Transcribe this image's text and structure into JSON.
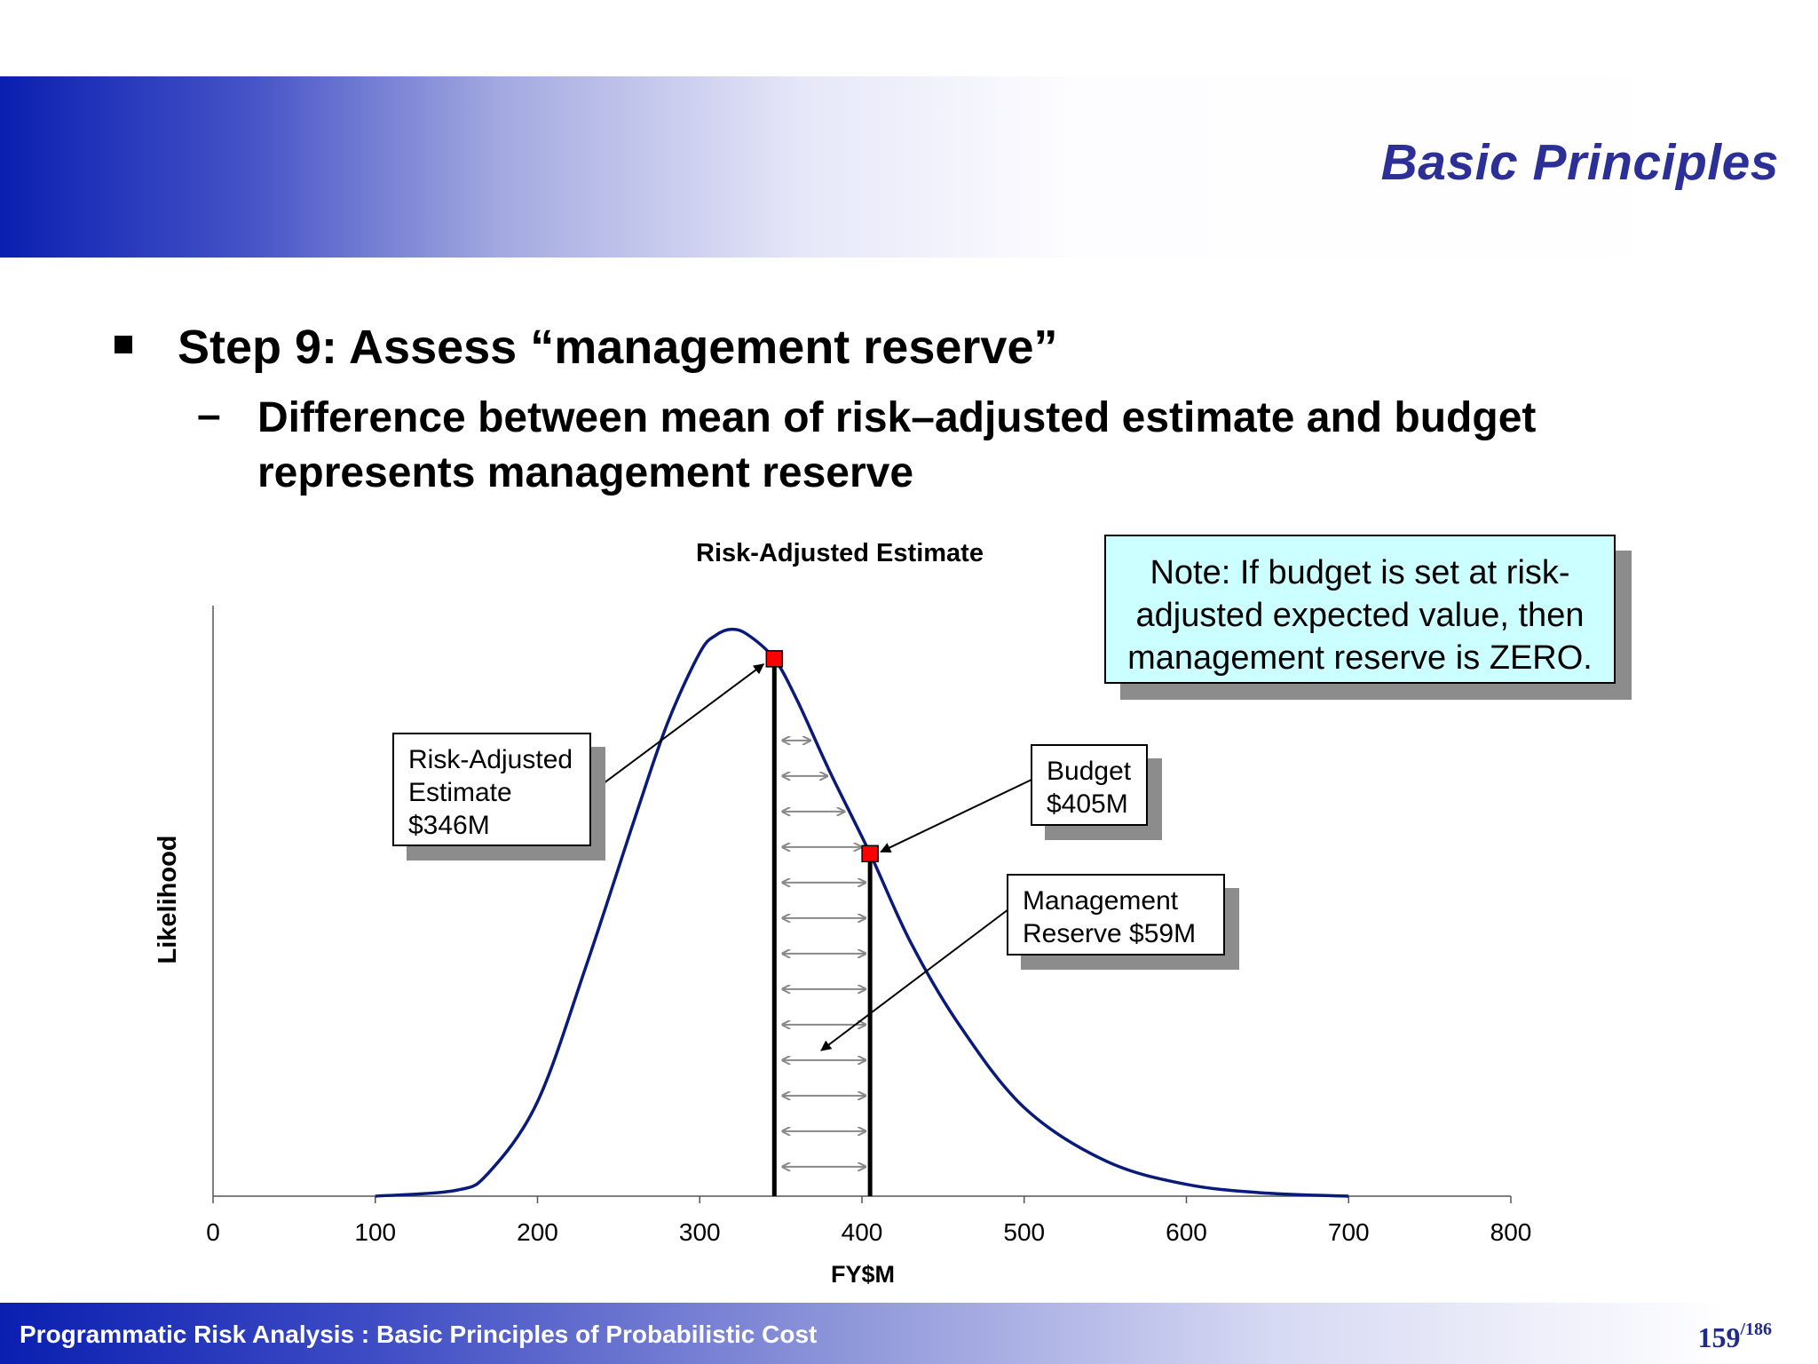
{
  "header": {
    "title": "Basic Principles"
  },
  "content": {
    "bullet": "Step 9: Assess “management reserve”",
    "sub_dash": "–",
    "sub_text": "Difference between mean of risk–adjusted estimate and budget represents management reserve"
  },
  "note": {
    "lines": [
      "Note: If budget is set at risk-",
      "adjusted expected value, then",
      "management reserve is ZERO."
    ]
  },
  "callouts": {
    "estimate": [
      "Risk-Adjusted",
      "Estimate",
      "$346M"
    ],
    "budget": [
      "Budget",
      "$405M"
    ],
    "reserve": [
      "Management",
      "Reserve $59M"
    ]
  },
  "chart_data": {
    "type": "line",
    "title": "Risk-Adjusted Estimate",
    "xlabel": "FY$M",
    "ylabel": "Likelihood",
    "xlim": [
      0,
      800
    ],
    "xticks": [
      0,
      100,
      200,
      300,
      400,
      500,
      600,
      700,
      800
    ],
    "ylim": [
      0,
      1
    ],
    "grid": false,
    "series": [
      {
        "x": [
          100,
          150,
          170,
          200,
          230,
          260,
          280,
          300,
          310,
          320,
          330,
          346,
          360,
          380,
          405,
          430,
          460,
          500,
          550,
          600,
          650,
          700
        ],
        "values": [
          0,
          0.01,
          0.04,
          0.16,
          0.39,
          0.64,
          0.8,
          0.92,
          0.95,
          0.96,
          0.95,
          0.91,
          0.84,
          0.72,
          0.58,
          0.43,
          0.29,
          0.15,
          0.06,
          0.02,
          0.005,
          0
        ]
      }
    ],
    "markers": [
      {
        "x": 346,
        "y": 0.91
      },
      {
        "x": 405,
        "y": 0.58
      }
    ],
    "reserve_range": [
      346,
      405
    ]
  },
  "footer": {
    "text": "Programmatic Risk Analysis  : Basic Principles of Probabilistic Cost",
    "page": "159",
    "total": "/186"
  }
}
